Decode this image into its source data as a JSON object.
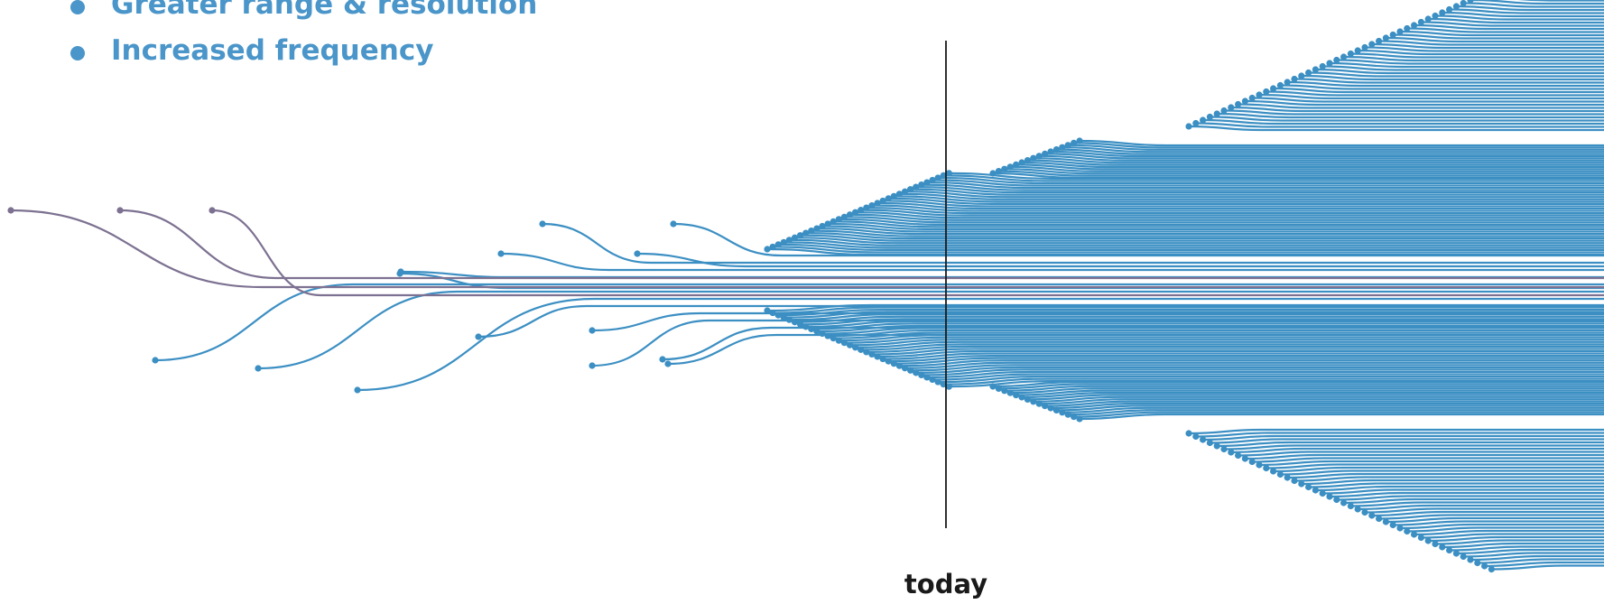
{
  "bullets": [
    {
      "label": "Greater range & resolution"
    },
    {
      "label": "Increased frequency"
    }
  ],
  "timeline": {
    "marker_label": "today"
  },
  "colors": {
    "text_accent": "#4a95c9",
    "current_branch": "#3c8fc3",
    "legacy_branch": "#7d7191",
    "marker": "#1a1a1a"
  }
}
